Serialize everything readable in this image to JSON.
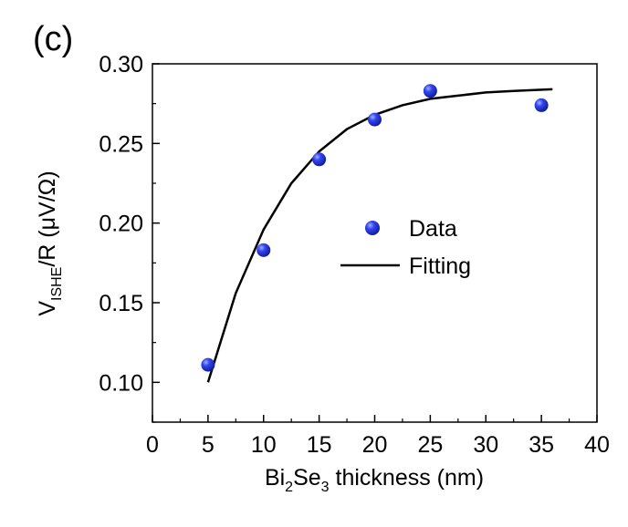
{
  "panel_label": "(c)",
  "colors": {
    "axis": "#000000",
    "points": "#1a2be0",
    "fit": "#000000"
  },
  "chart_data": {
    "type": "scatter",
    "xlabel": {
      "main": "Bi",
      "sub1": "2",
      "mid": "Se",
      "sub2": "3",
      "rest": " thickness (nm)"
    },
    "ylabel": {
      "main": "V",
      "sub": "ISHE",
      "rest": "/R (μV/Ω)"
    },
    "xlim": [
      0,
      40
    ],
    "ylim": [
      0.075,
      0.3
    ],
    "xticks": [
      0,
      5,
      10,
      15,
      20,
      25,
      30,
      35,
      40
    ],
    "yticks": [
      0.1,
      0.15,
      0.2,
      0.25,
      0.3
    ],
    "ytick_labels": [
      "0.10",
      "0.15",
      "0.20",
      "0.25",
      "0.30"
    ],
    "legend_position": "center-right",
    "series": [
      {
        "name": "Data",
        "kind": "points",
        "x": [
          5,
          10,
          15,
          20,
          25,
          35
        ],
        "y": [
          0.111,
          0.183,
          0.24,
          0.265,
          0.283,
          0.274
        ]
      },
      {
        "name": "Fitting",
        "kind": "line",
        "x": [
          5,
          7.5,
          10,
          12.5,
          15,
          17.5,
          20,
          22.5,
          25,
          27.5,
          30,
          32.5,
          36
        ],
        "y": [
          0.1,
          0.156,
          0.196,
          0.225,
          0.245,
          0.259,
          0.268,
          0.274,
          0.278,
          0.28,
          0.282,
          0.283,
          0.284
        ]
      }
    ]
  }
}
